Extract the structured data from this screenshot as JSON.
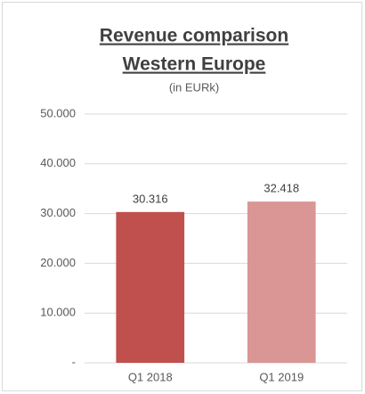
{
  "chart_data": {
    "type": "bar",
    "title": [
      "Revenue comparison",
      "Western Europe"
    ],
    "subtitle": "(in EURk)",
    "categories": [
      "Q1 2018",
      "Q1 2019"
    ],
    "values": [
      30316,
      32418
    ],
    "value_labels": [
      "30.316",
      "32.418"
    ],
    "colors": [
      "#c0504d",
      "#d99694"
    ],
    "ylim": [
      0,
      50000
    ],
    "yticks": [
      {
        "value": 0,
        "label": "-"
      },
      {
        "value": 10000,
        "label": "10.000"
      },
      {
        "value": 20000,
        "label": "20.000"
      },
      {
        "value": 30000,
        "label": "30.000"
      },
      {
        "value": 40000,
        "label": "40.000"
      },
      {
        "value": 50000,
        "label": "50.000"
      }
    ],
    "grid": true
  }
}
